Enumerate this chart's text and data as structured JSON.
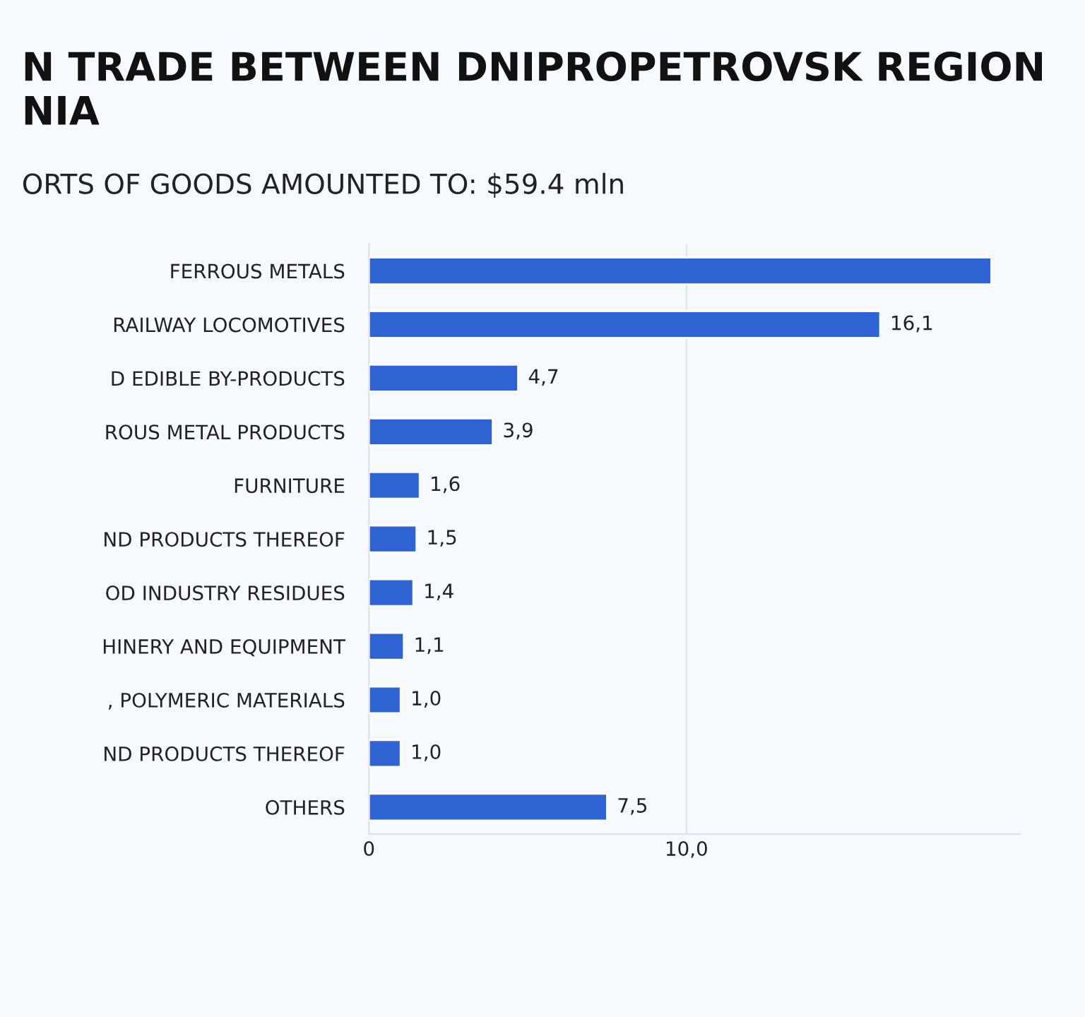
{
  "chart_data": {
    "type": "bar",
    "orientation": "horizontal",
    "title": "N TRADE BETWEEN DNIPROPETROVSK REGION\nNIA",
    "subtitle": "ORTS OF GOODS AMOUNTED TO: $59.4 mln",
    "categories": [
      "FERROUS METALS",
      "RAILWAY LOCOMOTIVES",
      "D EDIBLE BY-PRODUCTS",
      "ROUS METAL PRODUCTS",
      "FURNITURE",
      "ND PRODUCTS THEREOF",
      "OD INDUSTRY RESIDUES",
      "HINERY AND EQUIPMENT",
      ", POLYMERIC MATERIALS",
      "ND PRODUCTS THEREOF",
      "OTHERS"
    ],
    "values": [
      19.6,
      16.1,
      4.7,
      3.9,
      1.6,
      1.5,
      1.4,
      1.1,
      1.0,
      1.0,
      7.5
    ],
    "value_labels": [
      null,
      "16,1",
      "4,7",
      "3,9",
      "1,6",
      "1,5",
      "1,4",
      "1,1",
      "1,0",
      "1,0",
      "7,5"
    ],
    "color": "#2f62d2",
    "xlim": [
      0,
      20.5
    ],
    "xticks": [
      {
        "value": 0,
        "label": "0"
      },
      {
        "value": 10,
        "label": "10,0"
      }
    ],
    "grid": "x"
  }
}
